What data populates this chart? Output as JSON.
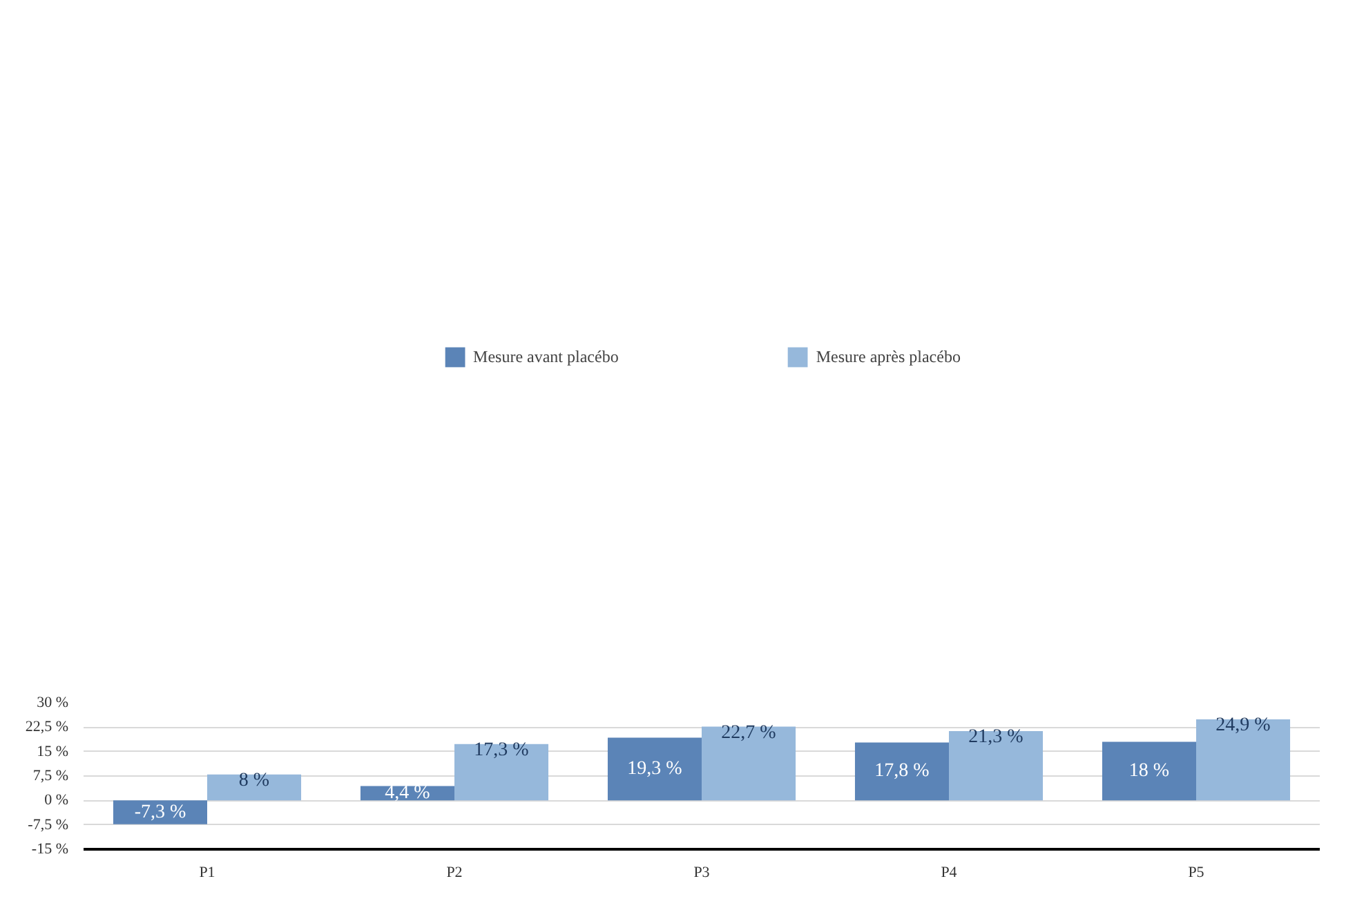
{
  "chart_data": {
    "type": "bar",
    "categories": [
      "P1",
      "P2",
      "P3",
      "P4",
      "P5"
    ],
    "series": [
      {
        "name": "Mesure avant placébo",
        "color": "#5b84b7",
        "values": [
          -7.3,
          4.4,
          19.3,
          17.8,
          18
        ],
        "value_labels": [
          "-7,3 %",
          "4,4 %",
          "19,3 %",
          "17,8 %",
          "18 %"
        ]
      },
      {
        "name": "Mesure après placébo",
        "color": "#96b8db",
        "values": [
          8,
          17.3,
          22.7,
          21.3,
          24.9
        ],
        "value_labels": [
          "8 %",
          "17,3 %",
          "22,7 %",
          "21,3 %",
          "24,9 %"
        ]
      }
    ],
    "ylim": [
      -15,
      30
    ],
    "yticks": [
      {
        "value": -15,
        "label": "-15 %"
      },
      {
        "value": -7.5,
        "label": "-7,5 %"
      },
      {
        "value": 0,
        "label": "0 %"
      },
      {
        "value": 7.5,
        "label": "7,5 %"
      },
      {
        "value": 15,
        "label": "15 %"
      },
      {
        "value": 22.5,
        "label": "22,5 %"
      },
      {
        "value": 30,
        "label": "30 %"
      }
    ],
    "grid": "y",
    "legend": "top"
  }
}
